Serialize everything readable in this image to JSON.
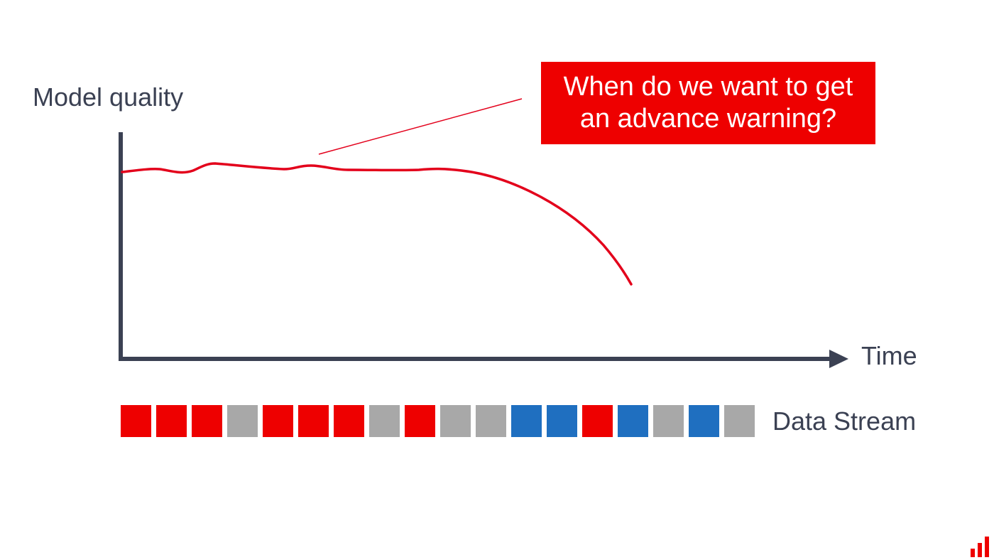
{
  "callout": {
    "line1": "When do we want to get",
    "line2": "an advance warning?"
  },
  "axes": {
    "y_label": "Model quality",
    "x_label": "Time"
  },
  "data_stream": {
    "label": "Data Stream",
    "blocks": [
      "red",
      "red",
      "red",
      "gray",
      "red",
      "red",
      "red",
      "gray",
      "red",
      "gray",
      "gray",
      "blue",
      "blue",
      "red",
      "blue",
      "gray",
      "blue",
      "gray"
    ]
  },
  "colors": {
    "red": "#ee0000",
    "gray": "#a8a8a8",
    "blue": "#1f6fc0",
    "axis": "#3b4153",
    "curve": "#e3001b"
  },
  "logo": {
    "icon": "bar-chart-icon"
  }
}
